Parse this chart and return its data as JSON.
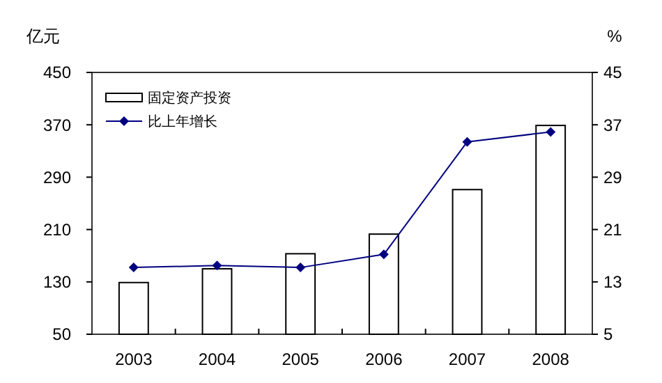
{
  "chart_data": {
    "type": "bar",
    "categories": [
      "2003",
      "2004",
      "2005",
      "2006",
      "2007",
      "2008"
    ],
    "series": [
      {
        "name": "固定资产投资",
        "color": "#ffffff",
        "values": [
          129,
          150,
          173,
          203,
          271,
          369
        ]
      },
      {
        "name": "比上年增长",
        "type": "line",
        "axis": "y2",
        "color": "#000080",
        "marker": "diamond",
        "values": [
          15.2,
          15.5,
          15.2,
          17.2,
          34.4,
          35.9
        ]
      }
    ],
    "ylabel": "亿元",
    "y2label": "%",
    "ylim": [
      50,
      450
    ],
    "yticks": [
      50,
      130,
      210,
      290,
      370,
      450
    ],
    "y2lim": [
      5,
      45
    ],
    "y2ticks": [
      5,
      13,
      21,
      29,
      37,
      45
    ],
    "grid": false,
    "legend": "top left"
  }
}
